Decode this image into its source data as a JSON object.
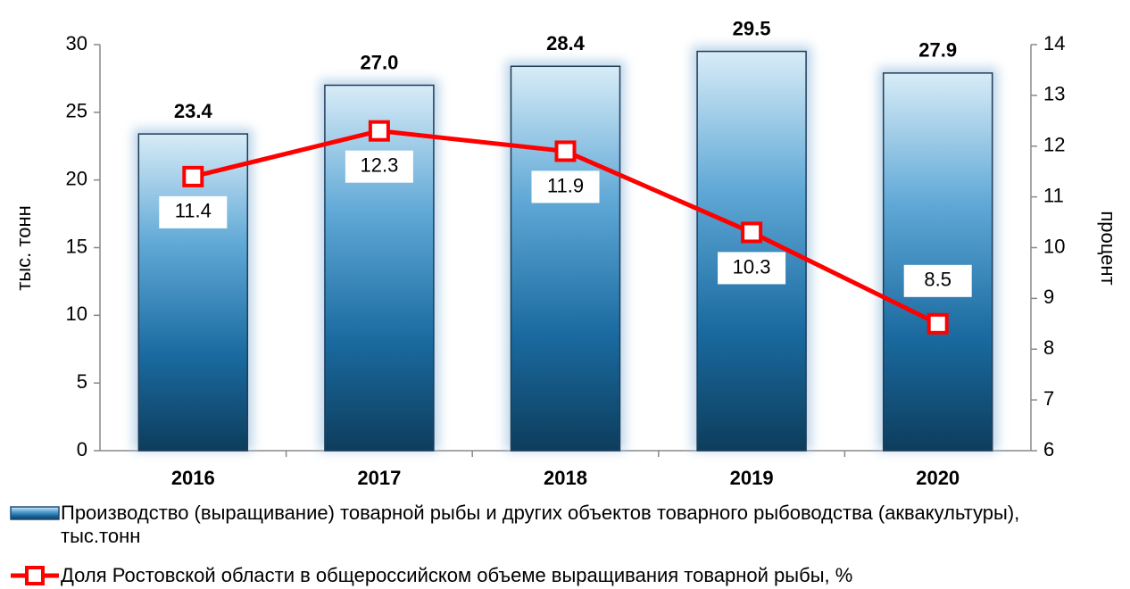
{
  "chart_data": {
    "type": "bar",
    "categories": [
      "2016",
      "2017",
      "2018",
      "2019",
      "2020"
    ],
    "y_label": "тыс. тонн",
    "y2_label": "процент",
    "ylim": [
      0,
      30
    ],
    "yticks": [
      0,
      5,
      10,
      15,
      20,
      25,
      30
    ],
    "y2lim": [
      6,
      14
    ],
    "y2ticks": [
      6,
      7,
      8,
      9,
      10,
      11,
      12,
      13,
      14
    ],
    "series": [
      {
        "name": "Производство (выращивание) товарной рыбы и других  объектов товарного рыбоводства (аквакультуры), тыс.тонн",
        "type": "bar",
        "color": "#1a6aa0",
        "values": [
          23.4,
          27.0,
          28.4,
          29.5,
          27.9
        ],
        "value_labels": [
          "23.4",
          "27.0",
          "28.4",
          "29.5",
          "27.9"
        ]
      },
      {
        "name": "Доля Ростовской области в общероссийском объеме выращивания товарной рыбы, %",
        "type": "line",
        "axis": "y2",
        "color": "#ff0000",
        "values": [
          11.4,
          12.3,
          11.9,
          10.3,
          8.5
        ]
      }
    ]
  }
}
